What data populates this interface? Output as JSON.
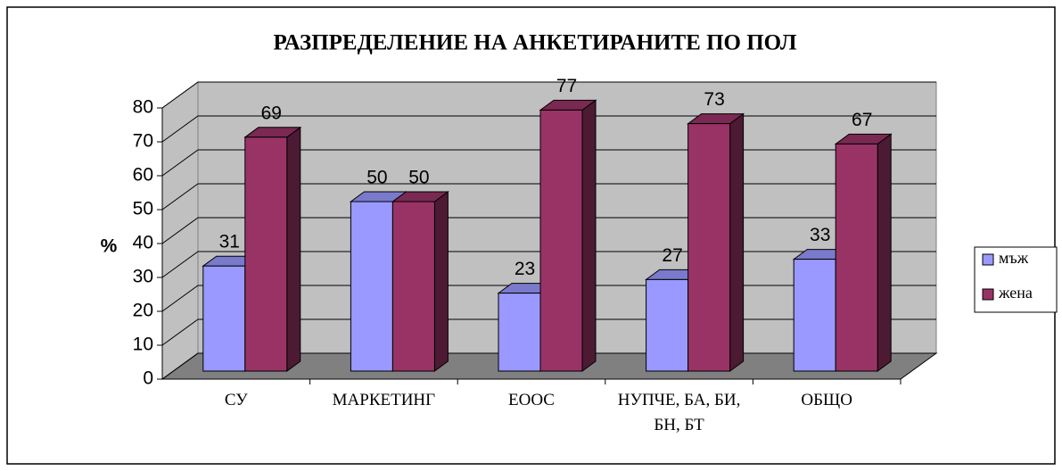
{
  "chart_data": {
    "type": "bar3d",
    "title": "РАЗПРЕДЕЛЕНИЕ НА АНКЕТИРАНИТЕ ПО ПОЛ",
    "y_label": "%",
    "categories": [
      "СУ",
      "МАРКЕТИНГ",
      "ЕООС",
      "НУПЧЕ, БА, БИ, БН, БТ",
      "ОБЩО"
    ],
    "series": [
      {
        "name": "мъж",
        "color": "#9999ff",
        "values": [
          31,
          50,
          23,
          27,
          33
        ]
      },
      {
        "name": "жена",
        "color": "#993366",
        "values": [
          69,
          50,
          77,
          73,
          67
        ]
      }
    ],
    "ylim": [
      0,
      80
    ],
    "yticks": [
      0,
      10,
      20,
      30,
      40,
      50,
      60,
      70,
      80
    ],
    "grid": true,
    "legend": "right"
  }
}
